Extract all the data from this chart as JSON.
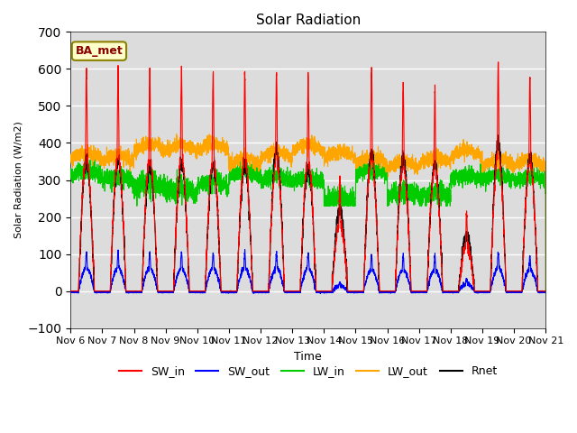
{
  "title": "Solar Radiation",
  "ylabel": "Solar Radiation (W/m2)",
  "xlabel": "Time",
  "ylim": [
    -100,
    700
  ],
  "x_tick_labels": [
    "Nov 6",
    "Nov 7",
    "Nov 8",
    "Nov 9",
    "Nov 10",
    "Nov 11",
    "Nov 12",
    "Nov 13",
    "Nov 14",
    "Nov 15",
    "Nov 16",
    "Nov 17",
    "Nov 18",
    "Nov 19",
    "Nov 20",
    "Nov 21"
  ],
  "annotation_text": "BA_met",
  "annotation_color": "#8B0000",
  "background_color": "#dcdcdc",
  "grid_color": "white",
  "series_colors": {
    "SW_in": "red",
    "SW_out": "blue",
    "LW_in": "#00cc00",
    "LW_out": "orange",
    "Rnet": "black"
  },
  "sw_in_peaks": [
    600,
    600,
    590,
    600,
    590,
    590,
    590,
    590,
    310,
    600,
    560,
    550,
    210,
    620,
    580
  ],
  "sw_out_peaks": [
    130,
    130,
    130,
    130,
    130,
    130,
    130,
    130,
    30,
    120,
    120,
    120,
    40,
    130,
    120
  ],
  "rnet_peaks": [
    350,
    350,
    340,
    345,
    340,
    340,
    380,
    330,
    220,
    370,
    360,
    340,
    150,
    400,
    360
  ],
  "lw_in_base": 300,
  "lw_out_base": 350,
  "n_days": 15,
  "pts_per_day": 288
}
